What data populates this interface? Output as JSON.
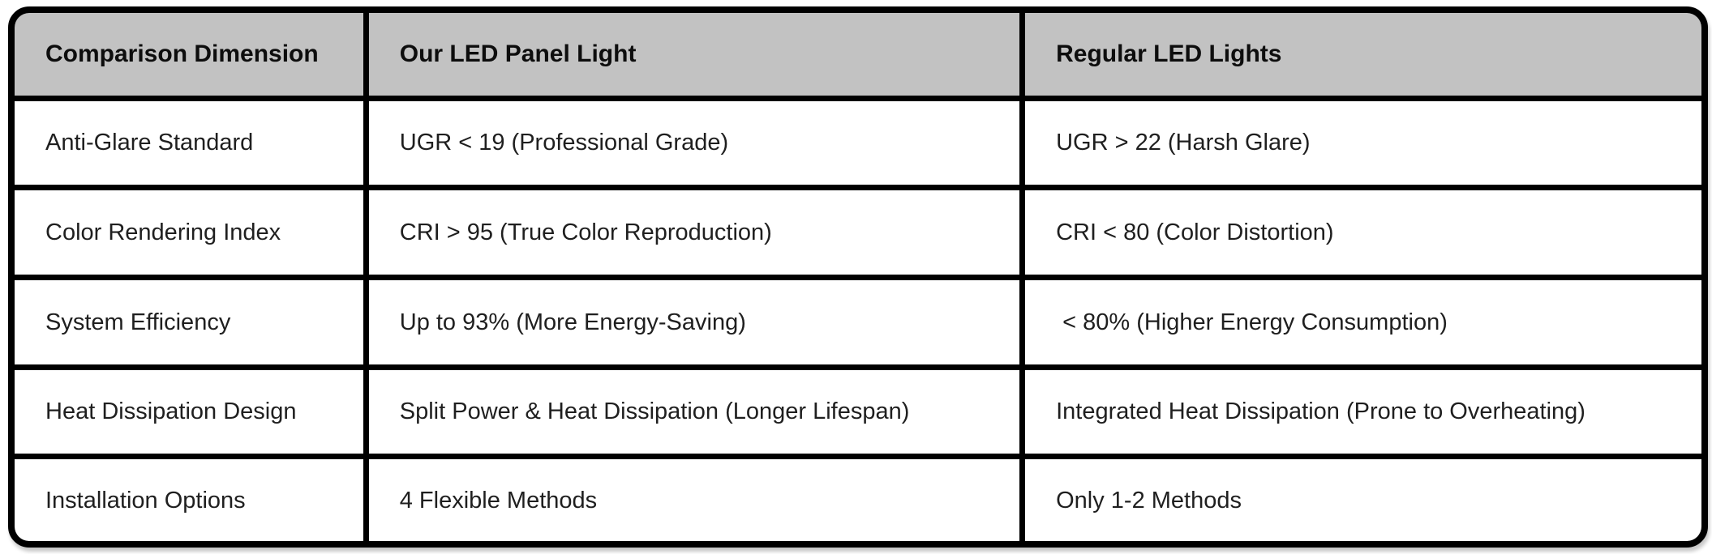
{
  "colors": {
    "border": "#000000",
    "header_bg": "#c2c2c2",
    "cell_bg": "#ffffff",
    "text": "#1f1f1f",
    "header_text": "#0d0d0d"
  },
  "table": {
    "header": [
      "Comparison Dimension",
      "Our LED Panel Light",
      "Regular LED Lights"
    ],
    "rows": [
      [
        "Anti-Glare Standard",
        "UGR < 19 (Professional Grade)",
        "UGR > 22 (Harsh Glare)"
      ],
      [
        "Color Rendering Index",
        "CRI > 95 (True Color Reproduction)",
        "CRI < 80 (Color Distortion)"
      ],
      [
        "System Efficiency",
        "Up to 93% (More Energy-Saving)",
        " < 80% (Higher Energy Consumption)"
      ],
      [
        "Heat Dissipation Design",
        "Split Power & Heat Dissipation (Longer Lifespan)",
        "Integrated Heat Dissipation (Prone to Overheating)"
      ],
      [
        "Installation Options",
        "4 Flexible Methods",
        "Only 1-2 Methods"
      ]
    ]
  },
  "chart_data": {
    "type": "table",
    "title": "",
    "columns": [
      "Comparison Dimension",
      "Our LED Panel Light",
      "Regular LED Lights"
    ],
    "rows": [
      {
        "dimension": "Anti-Glare Standard",
        "our_led_panel_light": "UGR < 19 (Professional Grade)",
        "regular_led_lights": "UGR > 22 (Harsh Glare)"
      },
      {
        "dimension": "Color Rendering Index",
        "our_led_panel_light": "CRI > 95 (True Color Reproduction)",
        "regular_led_lights": "CRI < 80 (Color Distortion)"
      },
      {
        "dimension": "System Efficiency",
        "our_led_panel_light": "Up to 93% (More Energy-Saving)",
        "regular_led_lights": "< 80% (Higher Energy Consumption)"
      },
      {
        "dimension": "Heat Dissipation Design",
        "our_led_panel_light": "Split Power & Heat Dissipation (Longer Lifespan)",
        "regular_led_lights": "Integrated Heat Dissipation (Prone to Overheating)"
      },
      {
        "dimension": "Installation Options",
        "our_led_panel_light": "4 Flexible Methods",
        "regular_led_lights": "Only 1-2 Methods"
      }
    ]
  }
}
